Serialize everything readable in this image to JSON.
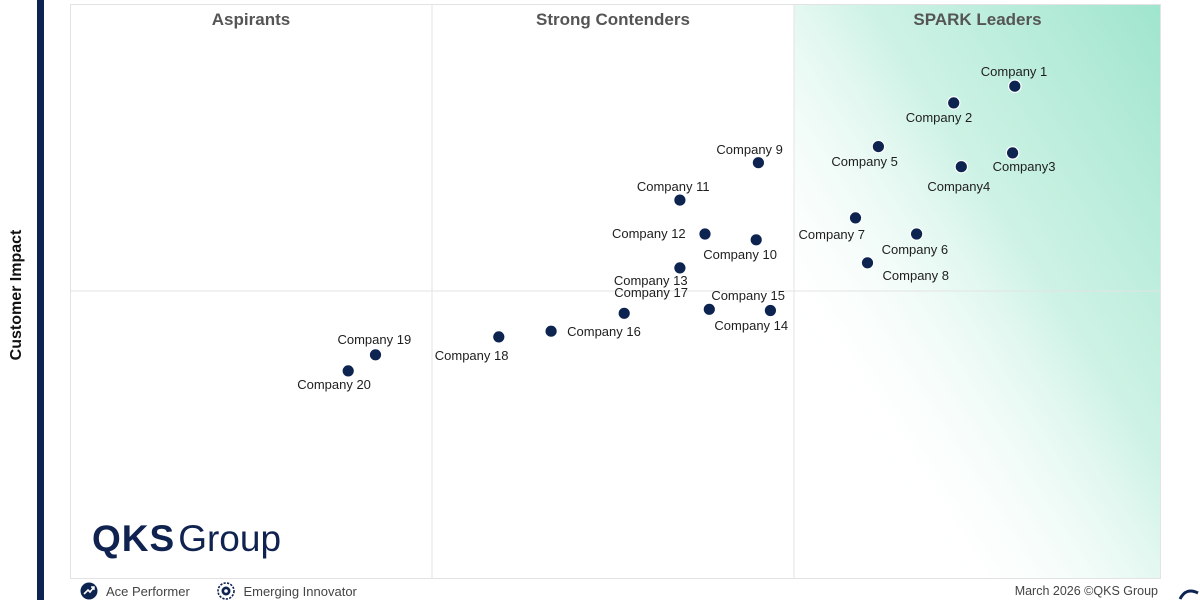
{
  "y_axis_label": "Customer Impact",
  "quadrants": {
    "aspirants": "Aspirants",
    "strong_contenders": "Strong Contenders",
    "spark_leaders": "SPARK Leaders"
  },
  "logo": {
    "bold": "QKS",
    "light": "Group"
  },
  "legend": [
    {
      "label": "Ace Performer",
      "icon": "trend-arrow-icon"
    },
    {
      "label": "Emerging Innovator",
      "icon": "gear-badge-icon"
    }
  ],
  "footer": "March 2026 ©QKS Group",
  "colors": {
    "point": "#0d2350",
    "brand": "#102350",
    "leader_gradient": "#9fe5cd",
    "axis_bar": "#0d2350"
  },
  "chart_data": {
    "type": "scatter",
    "ylabel": "Customer Impact",
    "xlabel": "",
    "xlim": [
      0,
      1
    ],
    "ylim": [
      0,
      1
    ],
    "legend_position": "bottom-left",
    "points": [
      {
        "label": "Company 1",
        "x": 0.866,
        "y": 0.857
      },
      {
        "label": "Company 2",
        "x": 0.81,
        "y": 0.828
      },
      {
        "label": "Company3",
        "x": 0.864,
        "y": 0.741
      },
      {
        "label": "Company4",
        "x": 0.817,
        "y": 0.717
      },
      {
        "label": "Company 5",
        "x": 0.741,
        "y": 0.752
      },
      {
        "label": "Company 6",
        "x": 0.776,
        "y": 0.6
      },
      {
        "label": "Company 7",
        "x": 0.72,
        "y": 0.628
      },
      {
        "label": "Company 8",
        "x": 0.731,
        "y": 0.55
      },
      {
        "label": "Company 9",
        "x": 0.631,
        "y": 0.724
      },
      {
        "label": "Company 10",
        "x": 0.629,
        "y": 0.59
      },
      {
        "label": "Company 11",
        "x": 0.559,
        "y": 0.659
      },
      {
        "label": "Company 12",
        "x": 0.582,
        "y": 0.6
      },
      {
        "label": "Company 13",
        "x": 0.559,
        "y": 0.541
      },
      {
        "label": "Company 14",
        "x": 0.642,
        "y": 0.467
      },
      {
        "label": "Company 15",
        "x": 0.586,
        "y": 0.469
      },
      {
        "label": "Company 16",
        "x": 0.441,
        "y": 0.431
      },
      {
        "label": "Company 17",
        "x": 0.508,
        "y": 0.462
      },
      {
        "label": "Company 18",
        "x": 0.393,
        "y": 0.421
      },
      {
        "label": "Company 19",
        "x": 0.28,
        "y": 0.39
      },
      {
        "label": "Company 20",
        "x": 0.255,
        "y": 0.362
      }
    ]
  }
}
